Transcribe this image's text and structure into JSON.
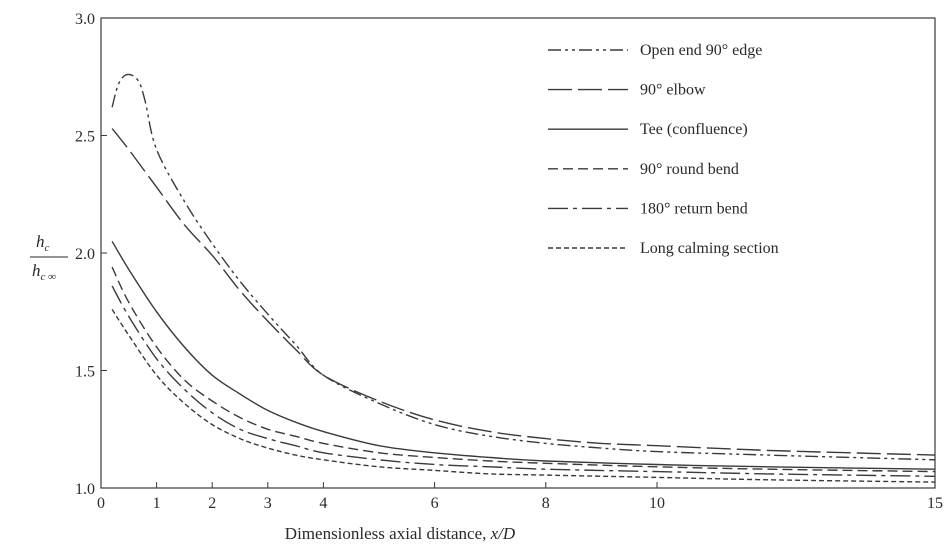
{
  "chart_data": {
    "type": "line",
    "title": "",
    "xlabel_prefix": "Dimensionless axial distance, ",
    "xlabel_var": "x/D",
    "ylabel_numerator": "h",
    "ylabel_numerator_sub": "c",
    "ylabel_denominator": "h",
    "ylabel_denominator_sub": "c ∞",
    "xlim": [
      0,
      15
    ],
    "ylim": [
      1.0,
      3.0
    ],
    "x_ticks": [
      0,
      1,
      2,
      3,
      4,
      6,
      8,
      10,
      15
    ],
    "x_tick_labels": [
      "0",
      "1",
      "2",
      "3",
      "4",
      "6",
      "8",
      "10",
      "15"
    ],
    "y_ticks": [
      1.0,
      1.5,
      2.0,
      2.5,
      3.0
    ],
    "y_tick_labels": [
      "1.0",
      "1.5",
      "2.0",
      "2.5",
      "3.0"
    ],
    "grid": false,
    "legend_position": "top-right",
    "series": [
      {
        "name": "Open end 90° edge",
        "color": "#3a3a3a",
        "dash": "13 4 3 4 3 4",
        "points": [
          [
            0.2,
            2.62
          ],
          [
            0.3,
            2.71
          ],
          [
            0.4,
            2.75
          ],
          [
            0.5,
            2.76
          ],
          [
            0.6,
            2.75
          ],
          [
            0.7,
            2.72
          ],
          [
            0.8,
            2.64
          ],
          [
            1.0,
            2.44
          ],
          [
            1.5,
            2.22
          ],
          [
            2.0,
            2.04
          ],
          [
            2.5,
            1.88
          ],
          [
            3.0,
            1.74
          ],
          [
            3.5,
            1.61
          ],
          [
            4.0,
            1.48
          ],
          [
            5.0,
            1.36
          ],
          [
            6.0,
            1.27
          ],
          [
            7.0,
            1.22
          ],
          [
            8.0,
            1.19
          ],
          [
            9.0,
            1.17
          ],
          [
            10.0,
            1.155
          ],
          [
            12.0,
            1.14
          ],
          [
            15.0,
            1.12
          ]
        ]
      },
      {
        "name": "90° elbow",
        "color": "#3a3a3a",
        "dash": "24 6",
        "points": [
          [
            0.2,
            2.53
          ],
          [
            0.5,
            2.44
          ],
          [
            1.0,
            2.28
          ],
          [
            1.5,
            2.12
          ],
          [
            2.0,
            1.99
          ],
          [
            2.5,
            1.84
          ],
          [
            3.0,
            1.71
          ],
          [
            3.5,
            1.59
          ],
          [
            4.0,
            1.48
          ],
          [
            5.0,
            1.37
          ],
          [
            6.0,
            1.29
          ],
          [
            7.0,
            1.24
          ],
          [
            8.0,
            1.21
          ],
          [
            9.0,
            1.19
          ],
          [
            10.0,
            1.18
          ],
          [
            12.0,
            1.16
          ],
          [
            15.0,
            1.14
          ]
        ]
      },
      {
        "name": "Tee (confluence)",
        "color": "#3a3a3a",
        "dash": "",
        "points": [
          [
            0.2,
            2.05
          ],
          [
            0.5,
            1.93
          ],
          [
            1.0,
            1.75
          ],
          [
            1.5,
            1.6
          ],
          [
            2.0,
            1.48
          ],
          [
            2.5,
            1.4
          ],
          [
            3.0,
            1.33
          ],
          [
            3.5,
            1.28
          ],
          [
            4.0,
            1.24
          ],
          [
            5.0,
            1.18
          ],
          [
            6.0,
            1.15
          ],
          [
            7.0,
            1.13
          ],
          [
            8.0,
            1.115
          ],
          [
            10.0,
            1.1
          ],
          [
            12.0,
            1.09
          ],
          [
            15.0,
            1.08
          ]
        ]
      },
      {
        "name": "90° round bend",
        "color": "#3a3a3a",
        "dash": "10 5",
        "points": [
          [
            0.2,
            1.94
          ],
          [
            0.5,
            1.79
          ],
          [
            1.0,
            1.6
          ],
          [
            1.5,
            1.46
          ],
          [
            2.0,
            1.37
          ],
          [
            2.5,
            1.3
          ],
          [
            3.0,
            1.25
          ],
          [
            3.5,
            1.22
          ],
          [
            4.0,
            1.19
          ],
          [
            5.0,
            1.15
          ],
          [
            6.0,
            1.13
          ],
          [
            7.0,
            1.115
          ],
          [
            8.0,
            1.105
          ],
          [
            10.0,
            1.09
          ],
          [
            12.0,
            1.08
          ],
          [
            15.0,
            1.07
          ]
        ]
      },
      {
        "name": "180° return bend",
        "color": "#3a3a3a",
        "dash": "20 5 4 5",
        "points": [
          [
            0.2,
            1.86
          ],
          [
            0.5,
            1.73
          ],
          [
            1.0,
            1.55
          ],
          [
            1.5,
            1.42
          ],
          [
            2.0,
            1.32
          ],
          [
            2.5,
            1.25
          ],
          [
            3.0,
            1.21
          ],
          [
            3.5,
            1.18
          ],
          [
            4.0,
            1.15
          ],
          [
            5.0,
            1.12
          ],
          [
            6.0,
            1.1
          ],
          [
            7.0,
            1.09
          ],
          [
            8.0,
            1.08
          ],
          [
            10.0,
            1.07
          ],
          [
            12.0,
            1.06
          ],
          [
            15.0,
            1.05
          ]
        ]
      },
      {
        "name": "Long calming section",
        "color": "#3a3a3a",
        "dash": "5 3",
        "points": [
          [
            0.2,
            1.76
          ],
          [
            0.5,
            1.65
          ],
          [
            1.0,
            1.48
          ],
          [
            1.5,
            1.36
          ],
          [
            2.0,
            1.27
          ],
          [
            2.5,
            1.21
          ],
          [
            3.0,
            1.17
          ],
          [
            3.5,
            1.14
          ],
          [
            4.0,
            1.12
          ],
          [
            5.0,
            1.09
          ],
          [
            6.0,
            1.075
          ],
          [
            7.0,
            1.06
          ],
          [
            8.0,
            1.055
          ],
          [
            10.0,
            1.045
          ],
          [
            12.0,
            1.035
          ],
          [
            15.0,
            1.025
          ]
        ]
      }
    ]
  }
}
